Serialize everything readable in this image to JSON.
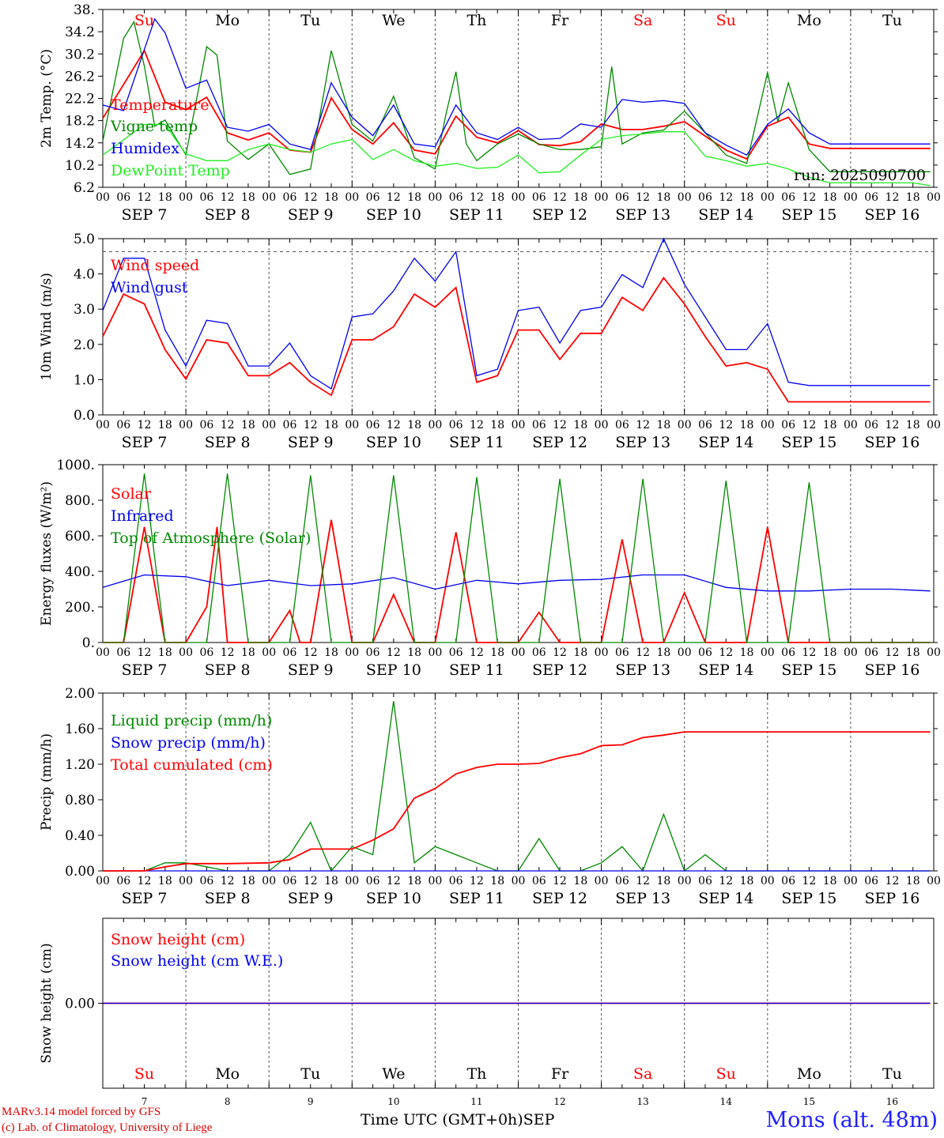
{
  "days": {
    "dates": [
      "7",
      "8",
      "9",
      "10",
      "11",
      "12",
      "13",
      "14",
      "15",
      "16"
    ],
    "names": [
      "Su",
      "Mo",
      "Tu",
      "We",
      "Th",
      "Fr",
      "Sa",
      "Su",
      "Mo",
      "Tu"
    ],
    "weekend": [
      true,
      false,
      false,
      false,
      false,
      false,
      true,
      true,
      false,
      false
    ],
    "month": "SEP",
    "hour_labels": [
      "00",
      "06",
      "12",
      "18"
    ],
    "final_hour_label": "00"
  },
  "footer": {
    "model": "MARv3.14 model forced by GFS",
    "credit": "(c) Lab. of Climatology, University of Liege",
    "xlabel": "Time UTC (GMT+0h)",
    "xlabel_unit": "SEP",
    "location": "Mons (alt. 48m)"
  },
  "colors": {
    "red": "#ff0000",
    "green": "#008800",
    "lightgreen": "#22ee22",
    "blue": "#0000ee",
    "axis": "#000000",
    "grid": "#555555"
  },
  "chart_data": [
    {
      "type": "line",
      "ylabel": "2m Temp. (°C)",
      "yticks": [
        "38.",
        "34.2",
        "30.2",
        "26.2",
        "22.2",
        "18.2",
        "14.2",
        "10.2",
        "6.2"
      ],
      "ylim": [
        6.2,
        38.2
      ],
      "run_label": "run: 2025090700",
      "series": [
        {
          "name": "Temperature",
          "color": "red",
          "x": [
            0,
            12,
            18,
            24,
            30,
            36,
            42,
            48,
            54,
            60,
            66,
            72,
            78,
            84,
            90,
            96,
            102,
            108,
            114,
            120,
            126,
            132,
            138,
            144,
            150,
            156,
            162,
            168,
            174,
            180,
            186,
            192,
            198,
            204,
            210,
            216,
            222,
            228,
            234,
            239
          ],
          "values": [
            18.6,
            30.8,
            21.5,
            20.2,
            22.4,
            16.0,
            14.7,
            16.0,
            12.9,
            12.5,
            22.3,
            16.6,
            14.0,
            17.8,
            12.9,
            12.2,
            19.0,
            15.2,
            14.2,
            16.4,
            13.9,
            13.7,
            14.4,
            17.6,
            16.6,
            16.6,
            17.2,
            18.0,
            15.4,
            12.9,
            11.3,
            17.2,
            18.8,
            14.0,
            13.2,
            13.2,
            13.2,
            13.2,
            13.2,
            13.2
          ]
        },
        {
          "name": "Vigne temp",
          "color": "green",
          "x": [
            0,
            6,
            9,
            12,
            15,
            18,
            24,
            30,
            33,
            36,
            42,
            48,
            54,
            60,
            66,
            69,
            72,
            78,
            84,
            90,
            96,
            99,
            102,
            105,
            108,
            114,
            120,
            126,
            132,
            138,
            144,
            147,
            150,
            156,
            162,
            168,
            174,
            180,
            186,
            192,
            195,
            198,
            204,
            210,
            216,
            222,
            228,
            234,
            239
          ],
          "values": [
            14.5,
            33.0,
            36.0,
            28.0,
            17.2,
            18.3,
            12.0,
            31.5,
            30.0,
            14.5,
            11.2,
            14.0,
            8.5,
            9.5,
            30.8,
            24.0,
            17.5,
            14.5,
            22.6,
            11.5,
            9.5,
            19.0,
            27.0,
            14.0,
            11.0,
            14.0,
            15.8,
            14.0,
            13.0,
            13.0,
            13.5,
            27.9,
            14.0,
            16.0,
            16.5,
            19.9,
            16.0,
            12.0,
            10.5,
            26.9,
            18.0,
            25.0,
            13.0,
            9.0,
            9.0,
            9.0,
            9.0,
            9.0,
            9.0
          ]
        },
        {
          "name": "Humidex",
          "color": "blue",
          "x": [
            0,
            6,
            12,
            15,
            18,
            24,
            30,
            36,
            42,
            48,
            54,
            60,
            66,
            72,
            78,
            84,
            90,
            96,
            102,
            108,
            114,
            120,
            126,
            132,
            138,
            144,
            150,
            156,
            162,
            168,
            174,
            180,
            186,
            192,
            198,
            204,
            210,
            216,
            222,
            228,
            234,
            239
          ],
          "values": [
            21.0,
            20.0,
            31.0,
            36.5,
            34.0,
            24.0,
            25.5,
            17.0,
            16.3,
            17.5,
            14.0,
            13.0,
            25.0,
            18.8,
            15.5,
            21.0,
            14.0,
            13.5,
            21.0,
            16.0,
            14.8,
            17.0,
            14.8,
            15.0,
            17.6,
            17.0,
            22.0,
            21.5,
            21.8,
            21.3,
            16.0,
            13.8,
            12.0,
            17.5,
            20.3,
            16.0,
            14.0,
            14.0,
            14.0,
            14.0,
            14.0,
            14.0
          ]
        },
        {
          "name": "DewPoint Temp",
          "color": "lightgreen",
          "x": [
            0,
            12,
            18,
            24,
            30,
            36,
            42,
            48,
            54,
            60,
            66,
            72,
            78,
            84,
            90,
            96,
            102,
            108,
            114,
            120,
            126,
            132,
            138,
            144,
            150,
            156,
            162,
            168,
            174,
            180,
            186,
            192,
            198,
            204,
            210,
            216,
            222,
            228,
            234,
            239
          ],
          "values": [
            12.0,
            17.5,
            17.5,
            12.2,
            11.0,
            11.0,
            13.0,
            14.0,
            13.0,
            12.5,
            14.0,
            14.8,
            11.2,
            13.0,
            11.0,
            10.0,
            10.5,
            9.6,
            9.8,
            12.0,
            8.8,
            9.0,
            12.0,
            14.8,
            15.5,
            15.8,
            16.2,
            16.2,
            11.8,
            11.0,
            10.0,
            10.5,
            9.5,
            8.0,
            7.0,
            7.0,
            7.0,
            7.0,
            7.0,
            6.5
          ]
        }
      ]
    },
    {
      "type": "line",
      "ylabel": "10m Wind (m/s)",
      "yticks": [
        "5.0",
        "4.0",
        "3.0",
        "2.0",
        "1.0",
        "0.0"
      ],
      "ylim": [
        0,
        5.4
      ],
      "reference_line": 5.0,
      "series": [
        {
          "name": "Wind speed",
          "color": "red",
          "x": [
            0,
            6,
            12,
            18,
            24,
            30,
            36,
            42,
            48,
            54,
            60,
            66,
            72,
            78,
            84,
            90,
            96,
            102,
            108,
            114,
            120,
            126,
            132,
            138,
            144,
            150,
            156,
            162,
            168,
            174,
            180,
            186,
            192,
            198,
            204,
            210,
            216,
            222,
            228,
            234,
            239
          ],
          "values": [
            2.4,
            3.7,
            3.4,
            2.0,
            1.1,
            2.3,
            2.2,
            1.2,
            1.2,
            1.6,
            1.0,
            0.6,
            2.3,
            2.3,
            2.7,
            3.7,
            3.3,
            3.9,
            1.0,
            1.2,
            2.6,
            2.6,
            1.7,
            2.5,
            2.5,
            3.6,
            3.2,
            4.2,
            3.4,
            2.4,
            1.5,
            1.6,
            1.4,
            0.4,
            0.4,
            0.4,
            0.4,
            0.4,
            0.4,
            0.4,
            0.4
          ]
        },
        {
          "name": "Wind gust",
          "color": "blue",
          "x": [
            0,
            6,
            12,
            18,
            24,
            30,
            36,
            42,
            48,
            54,
            60,
            66,
            72,
            78,
            84,
            90,
            96,
            102,
            108,
            114,
            120,
            126,
            132,
            138,
            144,
            150,
            156,
            162,
            168,
            174,
            180,
            186,
            192,
            198,
            204,
            210,
            216,
            222,
            228,
            234,
            239
          ],
          "values": [
            3.2,
            4.8,
            4.8,
            2.6,
            1.5,
            2.9,
            2.8,
            1.5,
            1.5,
            2.2,
            1.2,
            0.8,
            3.0,
            3.1,
            3.8,
            4.8,
            4.1,
            5.0,
            1.2,
            1.4,
            3.2,
            3.3,
            2.2,
            3.2,
            3.3,
            4.3,
            3.9,
            5.4,
            4.0,
            3.0,
            2.0,
            2.0,
            2.8,
            1.0,
            0.9,
            0.9,
            0.9,
            0.9,
            0.9,
            0.9,
            0.9
          ]
        }
      ]
    },
    {
      "type": "line",
      "ylabel": "Energy fluxes (W/m²)",
      "yticks": [
        "1000.",
        "800.",
        "600.",
        "400.",
        "200.",
        "0."
      ],
      "ylim": [
        0,
        1000
      ],
      "series": [
        {
          "name": "Solar",
          "color": "red",
          "x": [
            0,
            6,
            12,
            18,
            24,
            30,
            33,
            36,
            42,
            48,
            54,
            57,
            60,
            66,
            72,
            78,
            84,
            90,
            96,
            102,
            108,
            114,
            120,
            126,
            132,
            138,
            144,
            150,
            156,
            162,
            168,
            174,
            180,
            186,
            192,
            198,
            204,
            210,
            216,
            222,
            228,
            234,
            239
          ],
          "values": [
            0,
            0,
            650,
            0,
            0,
            200,
            650,
            0,
            0,
            0,
            180,
            0,
            0,
            690,
            0,
            0,
            270,
            0,
            0,
            620,
            0,
            0,
            0,
            170,
            0,
            0,
            0,
            580,
            0,
            0,
            280,
            0,
            0,
            0,
            650,
            0,
            0,
            0,
            0,
            0,
            0,
            0,
            0
          ]
        },
        {
          "name": "Infrared",
          "color": "blue",
          "x": [
            0,
            12,
            24,
            36,
            48,
            60,
            72,
            84,
            96,
            108,
            120,
            132,
            144,
            156,
            168,
            180,
            192,
            204,
            216,
            228,
            239
          ],
          "values": [
            310,
            380,
            370,
            320,
            350,
            320,
            330,
            365,
            300,
            350,
            330,
            350,
            355,
            380,
            380,
            310,
            290,
            290,
            300,
            300,
            290
          ]
        },
        {
          "name": "Top of Atmosphere (Solar)",
          "color": "green",
          "x": [
            0,
            6,
            12,
            18,
            24,
            30,
            36,
            42,
            48,
            54,
            60,
            66,
            72,
            78,
            84,
            90,
            96,
            102,
            108,
            114,
            120,
            126,
            132,
            138,
            144,
            150,
            156,
            162,
            168,
            174,
            180,
            186,
            192,
            198,
            204,
            210,
            216,
            222,
            228,
            234,
            239
          ],
          "values": [
            0,
            0,
            950,
            0,
            0,
            0,
            950,
            0,
            0,
            0,
            940,
            0,
            0,
            0,
            940,
            0,
            0,
            0,
            930,
            0,
            0,
            0,
            920,
            0,
            0,
            0,
            920,
            0,
            0,
            0,
            910,
            0,
            0,
            0,
            900,
            0,
            0,
            0,
            0,
            0,
            0
          ]
        }
      ]
    },
    {
      "type": "line",
      "ylabel": "Precip (mm/h)",
      "yticks": [
        "2.00",
        "1.60",
        "1.20",
        "0.80",
        "0.40",
        "0.00"
      ],
      "ylim": [
        0,
        2.2
      ],
      "series": [
        {
          "name": "Liquid precip (mm/h)",
          "color": "green",
          "x": [
            0,
            12,
            18,
            24,
            36,
            48,
            54,
            60,
            66,
            72,
            78,
            84,
            90,
            96,
            102,
            108,
            114,
            120,
            126,
            132,
            138,
            144,
            150,
            156,
            162,
            168,
            174,
            180,
            186,
            192,
            198,
            204,
            210,
            216,
            222,
            228,
            234,
            239
          ],
          "values": [
            0,
            0,
            0.1,
            0.1,
            0,
            0,
            0.2,
            0.6,
            0,
            0.3,
            0.2,
            2.1,
            0.1,
            0.3,
            0.2,
            0.1,
            0,
            0,
            0.4,
            0,
            0,
            0.1,
            0.3,
            0,
            0.7,
            0,
            0.2,
            0,
            0,
            0,
            0,
            0,
            0,
            0,
            0,
            0,
            0,
            0
          ]
        },
        {
          "name": "Snow precip (mm/h)",
          "color": "blue",
          "x": [
            0,
            239
          ],
          "values": [
            0,
            0
          ]
        },
        {
          "name": "Total cumulated (cm)",
          "color": "red",
          "x": [
            0,
            12,
            18,
            24,
            36,
            48,
            54,
            60,
            66,
            72,
            78,
            84,
            90,
            96,
            102,
            108,
            114,
            120,
            126,
            132,
            138,
            144,
            150,
            156,
            162,
            168,
            174,
            180,
            186,
            192,
            198,
            204,
            210,
            216,
            222,
            228,
            234,
            239
          ],
          "values": [
            0,
            0,
            0.05,
            0.09,
            0.09,
            0.1,
            0.14,
            0.27,
            0.27,
            0.27,
            0.38,
            0.52,
            0.9,
            1.02,
            1.2,
            1.28,
            1.32,
            1.32,
            1.33,
            1.4,
            1.45,
            1.55,
            1.56,
            1.65,
            1.68,
            1.72,
            1.72,
            1.72,
            1.72,
            1.72,
            1.72,
            1.72,
            1.72,
            1.72,
            1.72,
            1.72,
            1.72,
            1.72
          ]
        }
      ]
    },
    {
      "type": "line",
      "ylabel": "Snow height (cm)",
      "yticks": [
        "0.00"
      ],
      "ylim": [
        -1,
        1
      ],
      "series": [
        {
          "name": "Snow height (cm)",
          "color": "red",
          "x": [
            0,
            239
          ],
          "values": [
            0,
            0
          ]
        },
        {
          "name": "Snow height (cm W.E.)",
          "color": "blue",
          "x": [
            0,
            239
          ],
          "values": [
            0,
            0
          ]
        }
      ]
    }
  ]
}
